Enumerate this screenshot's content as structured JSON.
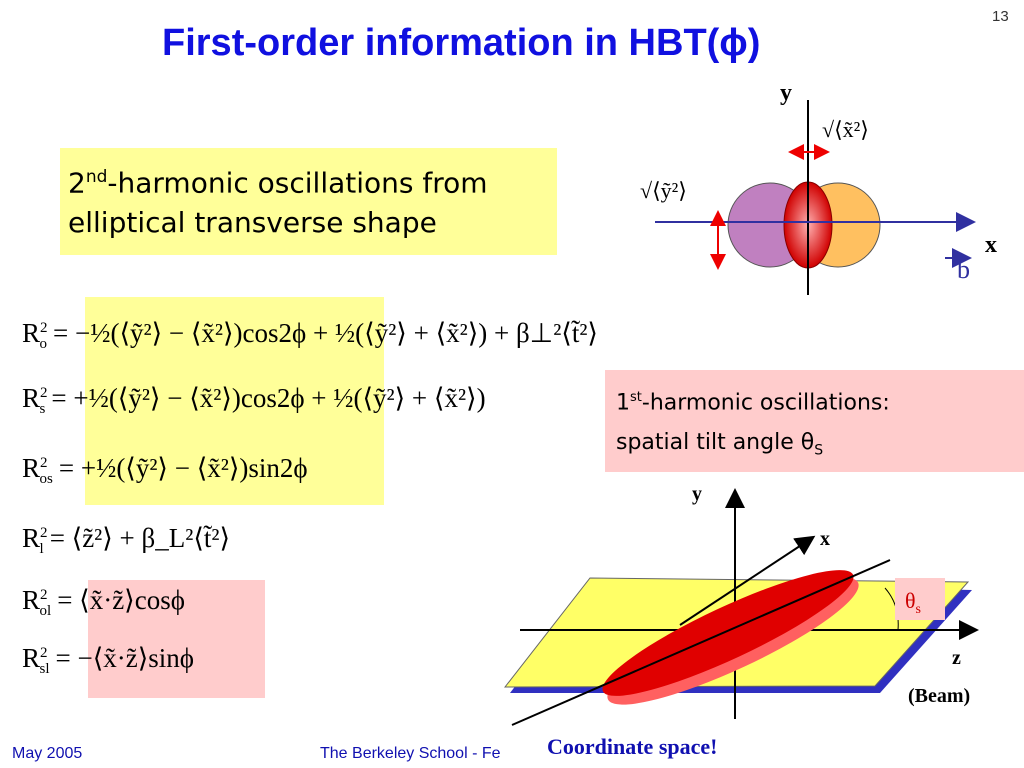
{
  "slide_number": "13",
  "title": "First-order information in HBT(ϕ)",
  "box_second": {
    "line1_num": "2",
    "line1_sup": "nd",
    "line1_rest": "-harmonic oscillations from",
    "line2": "elliptical transverse shape"
  },
  "box_first": {
    "line1_num": "1",
    "line1_sup": "st",
    "line1_rest": "-harmonic oscillations:",
    "line2": "spatial tilt angle θ",
    "line2_sub": "S"
  },
  "equations": [
    {
      "sym": "R",
      "sub": "o",
      "sup": "2",
      "rhs": "= −½(⟨ỹ²⟩ − ⟨x̃²⟩)cos2ϕ + ½(⟨ỹ²⟩ + ⟨x̃²⟩) + β⊥²⟨t̃²⟩"
    },
    {
      "sym": "R",
      "sub": "s",
      "sup": "2",
      "rhs": "= +½(⟨ỹ²⟩ − ⟨x̃²⟩)cos2ϕ + ½(⟨ỹ²⟩ + ⟨x̃²⟩)"
    },
    {
      "sym": "R",
      "sub": "os",
      "sup": "2",
      "rhs": "= +½(⟨ỹ²⟩ − ⟨x̃²⟩)sin2ϕ"
    },
    {
      "sym": "R",
      "sub": "l",
      "sup": "2",
      "rhs": "= ⟨z̃²⟩ + β_L²⟨t̃²⟩"
    },
    {
      "sym": "R",
      "sub": "ol",
      "sup": "2",
      "rhs": "= ⟨x̃·z̃⟩cosϕ"
    },
    {
      "sym": "R",
      "sub": "sl",
      "sup": "2",
      "rhs": "= −⟨x̃·z̃⟩sinϕ"
    }
  ],
  "top_diagram": {
    "y_axis": "y",
    "x_axis": "x",
    "b_label": "b",
    "x_width": "√⟨x̃²⟩",
    "y_width": "√⟨ỹ²⟩"
  },
  "diagram_3d": {
    "y_axis": "y",
    "x_axis": "x",
    "z_axis": "z",
    "beam": "(Beam)",
    "theta": "θ",
    "theta_sub": "s",
    "caption": "Coordinate space!"
  },
  "footer": {
    "date": "May 2005",
    "school": "The Berkeley School - Fe"
  }
}
